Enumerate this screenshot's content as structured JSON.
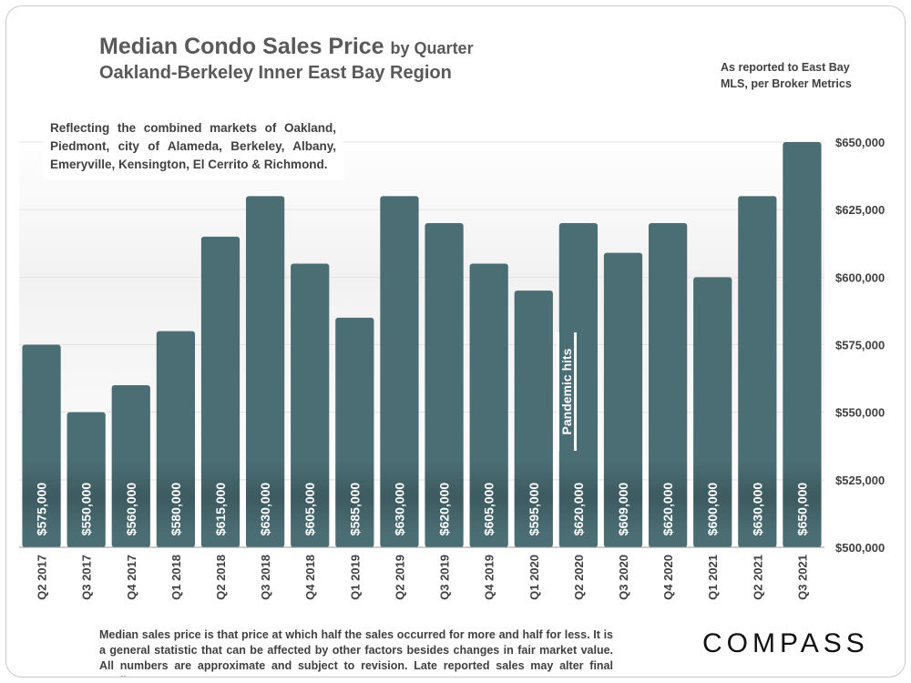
{
  "header": {
    "title": "Median Condo Sales Price",
    "title_suffix": "by Quarter",
    "subtitle": "Oakland-Berkeley Inner East Bay Region",
    "source_note": "As reported to East Bay MLS, per Broker Metrics"
  },
  "region_note": "Reflecting the combined markets of Oakland, Piedmont, city of Alameda, Berkeley, Albany, Emeryville, Kensington, El Cerrito & Richmond.",
  "annotation": "Pandemic hits",
  "footnote": "Median sales price is that price at which half the sales occurred for more and half for less. It is a general statistic that can be affected by other factors besides changes in fair market value. All numbers are approximate and subject to revision. Late reported sales may alter final reading.",
  "brand": "COMPASS",
  "colors": {
    "bar": "#4a6e74",
    "text": "#404040",
    "title": "#595959",
    "grid": "#e3e3e3"
  },
  "chart_data": {
    "type": "bar",
    "title": "Median Condo Sales Price by Quarter",
    "categories": [
      "Q2 2017",
      "Q3 2017",
      "Q4 2017",
      "Q1 2018",
      "Q2 2018",
      "Q3 2018",
      "Q4 2018",
      "Q1 2019",
      "Q2 2019",
      "Q3 2019",
      "Q4 2019",
      "Q1 2020",
      "Q2 2020",
      "Q3 2020",
      "Q4 2020",
      "Q1 2021",
      "Q2 2021",
      "Q3 2021"
    ],
    "values": [
      575000,
      550000,
      560000,
      580000,
      615000,
      630000,
      605000,
      585000,
      630000,
      620000,
      605000,
      595000,
      620000,
      609000,
      620000,
      600000,
      630000,
      650000
    ],
    "value_labels": [
      "$575,000",
      "$550,000",
      "$560,000",
      "$580,000",
      "$615,000",
      "$630,000",
      "$605,000",
      "$585,000",
      "$630,000",
      "$620,000",
      "$605,000",
      "$595,000",
      "$620,000",
      "$609,000",
      "$620,000",
      "$600,000",
      "$630,000",
      "$650,000"
    ],
    "ylim": [
      500000,
      650000
    ],
    "yticks": [
      500000,
      525000,
      550000,
      575000,
      600000,
      625000,
      650000
    ],
    "ytick_labels": [
      "$500,000",
      "$525,000",
      "$550,000",
      "$575,000",
      "$600,000",
      "$625,000",
      "$650,000"
    ],
    "y_axis_side": "right",
    "xlabel": "",
    "ylabel": "",
    "grid": true
  }
}
